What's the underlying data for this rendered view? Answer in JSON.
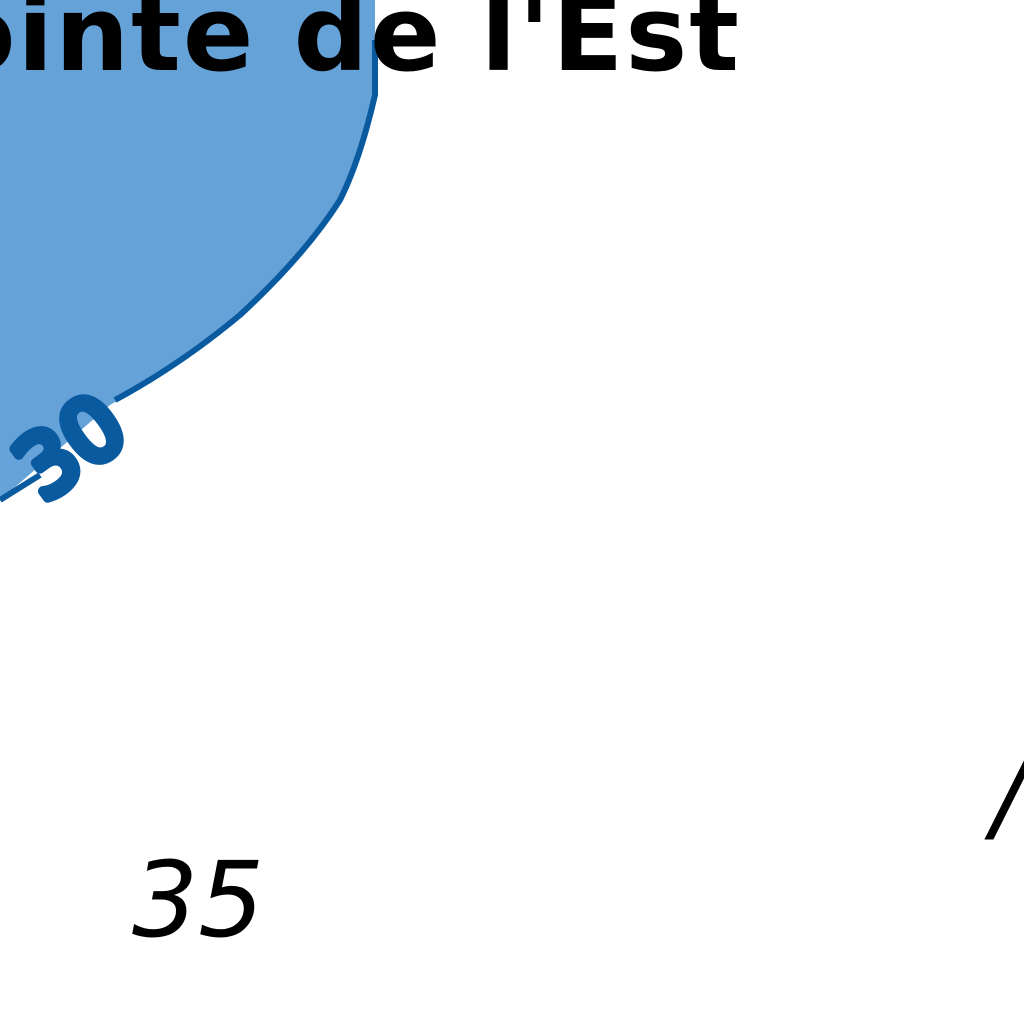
{
  "map": {
    "place_label": "ointe de l'Est",
    "contour_label": "30",
    "soundings": [
      "35",
      "/"
    ],
    "colors": {
      "water_fill": "#65a2d8",
      "contour_line": "#0a5aa0",
      "text": "#000000",
      "background": "#ffffff"
    }
  }
}
